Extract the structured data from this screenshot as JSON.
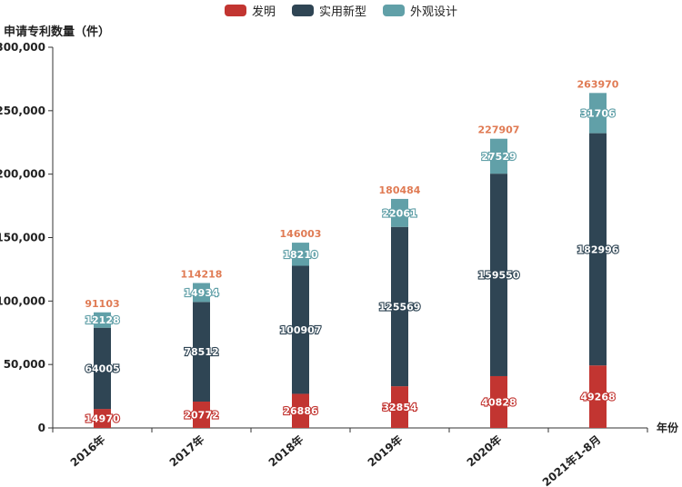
{
  "chart_data": {
    "type": "bar",
    "stacked": true,
    "ylabel": "申请专利数量（件）",
    "xlabel": "年份",
    "categories": [
      "2016年",
      "2017年",
      "2018年",
      "2019年",
      "2020年",
      "2021年1-8月"
    ],
    "ylim": [
      0,
      300000
    ],
    "yticks": [
      "0",
      "50,000",
      "100,000",
      "150,000",
      "200,000",
      "250,000",
      "300,000"
    ],
    "series": [
      {
        "name": "发明",
        "color": "#c23531",
        "values": [
          14970,
          20772,
          26886,
          32854,
          40828,
          49268
        ]
      },
      {
        "name": "实用新型",
        "color": "#2f4554",
        "values": [
          64005,
          78512,
          100907,
          125569,
          159550,
          182996
        ]
      },
      {
        "name": "外观设计",
        "color": "#61a0a8",
        "values": [
          12128,
          14934,
          18210,
          22061,
          27529,
          31706
        ]
      }
    ],
    "totals": [
      91103,
      114218,
      146003,
      180484,
      227907,
      263970
    ],
    "total_color": "#e07b54",
    "legend_position": "top-center",
    "grid": false
  }
}
